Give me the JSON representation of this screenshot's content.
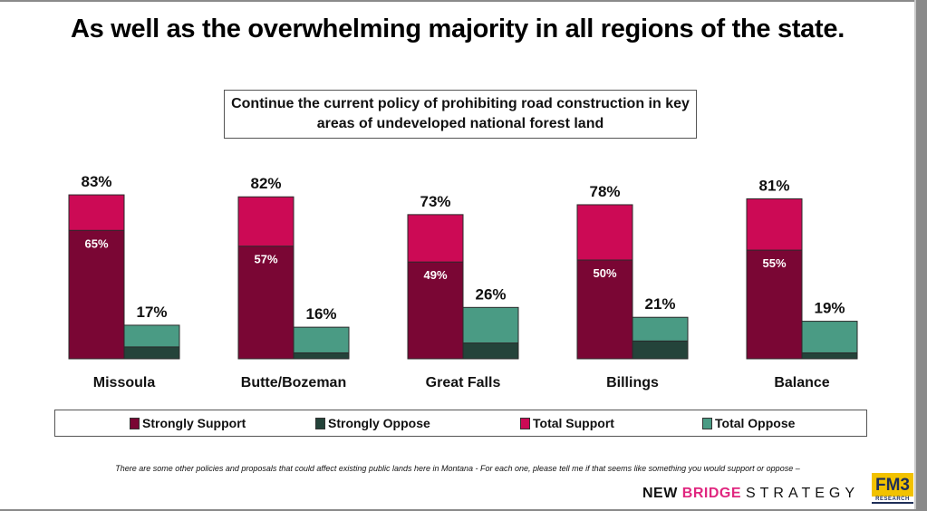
{
  "title": "As well as the overwhelming majority in all regions of the state.",
  "subtitle": "Continue the current policy of prohibiting road construction in key areas of undeveloped national forest land",
  "footnote": "There are some other policies and proposals that could affect existing public lands here in Montana - For each one, please tell me if that seems like something you would support or oppose –",
  "brand": {
    "part1": "NEW",
    "part2": "BRIDGE",
    "part3": "STRATEGY",
    "logo_main": "FM3",
    "logo_sub": "RESEARCH"
  },
  "colors": {
    "strongly_support": "#7a0634",
    "strongly_oppose": "#24433a",
    "total_support": "#cc0a55",
    "total_oppose": "#4a9b84"
  },
  "chart_data": {
    "type": "bar",
    "title": "Continue the current policy of prohibiting road construction in key areas of undeveloped national forest land",
    "categories": [
      "Missoula",
      "Butte/Bozeman",
      "Great Falls",
      "Billings",
      "Balance"
    ],
    "series": [
      {
        "name": "Strongly Support",
        "values": [
          65,
          57,
          49,
          50,
          55
        ],
        "labeled": true
      },
      {
        "name": "Strongly Oppose",
        "values": [
          6,
          3,
          8,
          9,
          3
        ],
        "labeled": false,
        "note": "estimated from segment height"
      },
      {
        "name": "Total Support",
        "values": [
          83,
          82,
          73,
          78,
          81
        ],
        "labeled": true
      },
      {
        "name": "Total Oppose",
        "values": [
          17,
          16,
          26,
          21,
          19
        ],
        "labeled": true
      }
    ],
    "value_format": "percent",
    "xlabel": "",
    "ylabel": "",
    "ylim": [
      0,
      100
    ],
    "grid": false,
    "legend": {
      "position": "bottom",
      "items": [
        "Strongly Support",
        "Strongly Oppose",
        "Total Support",
        "Total Oppose"
      ]
    }
  }
}
